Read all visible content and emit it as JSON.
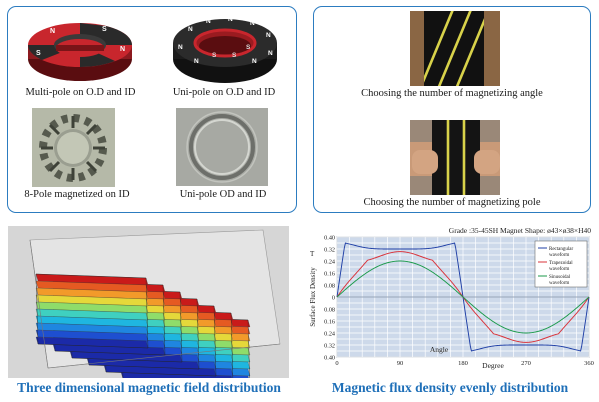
{
  "top_left": {
    "items": [
      {
        "caption": "Multi-pole on O.D and ID"
      },
      {
        "caption": "Uni-pole on O.D and ID"
      },
      {
        "caption": "8-Pole magnetized on ID"
      },
      {
        "caption": "Uni-pole OD and ID"
      }
    ]
  },
  "top_right": {
    "items": [
      {
        "caption": "Choosing the number of magnetizing angle"
      },
      {
        "caption": "Choosing the number of magnetizing pole"
      }
    ]
  },
  "ring_labels": {
    "multi_pole": [
      "N",
      "S",
      "N",
      "S",
      "N",
      "S"
    ],
    "uni_pole": [
      "N",
      "N",
      "N",
      "N",
      "N",
      "N",
      "N",
      "N",
      "N",
      "S",
      "S",
      "S"
    ]
  },
  "bottom_left": {
    "caption": "Three dimensional magnetic field distribution"
  },
  "bottom_right": {
    "caption": "Magnetic flux density evenly distribution",
    "header": "Grade :35-45SH    Magnet  Shape: ø43×ø38×H40",
    "unit": "T",
    "chart_data": {
      "type": "line",
      "xlabel": "Angle",
      "xlabel2": "Degree",
      "ylabel": "Surface Flux Density",
      "xlim": [
        0,
        360
      ],
      "ylim": [
        -0.4,
        0.4
      ],
      "xticks": [
        0,
        90,
        180,
        270,
        360
      ],
      "yticks": [
        "0.40",
        "0.32",
        "0.24",
        "0.16",
        "0.08",
        "0",
        "0.08",
        "0.16",
        "0.24",
        "0.32",
        "0.40"
      ],
      "grid": true,
      "legend_position": "top-right",
      "series": [
        {
          "name": "Rectangular waveform",
          "color": "#1f3fa6",
          "amplitude": 0.32,
          "shape": "rectangular"
        },
        {
          "name": "Trapezoidal waveform",
          "color": "#d9333a",
          "amplitude": 0.27,
          "shape": "trapezoidal"
        },
        {
          "name": "Sinusoidal waveform",
          "color": "#1b9a4a",
          "amplitude": 0.24,
          "shape": "sinusoidal"
        }
      ]
    }
  },
  "colors": {
    "panel_border": "#2c7cc0",
    "caption_blue": "#1e6fb8",
    "magnet_red": "#c8262d",
    "magnet_black": "#2a2a2a",
    "flux_bg": "#cdd9ea"
  }
}
